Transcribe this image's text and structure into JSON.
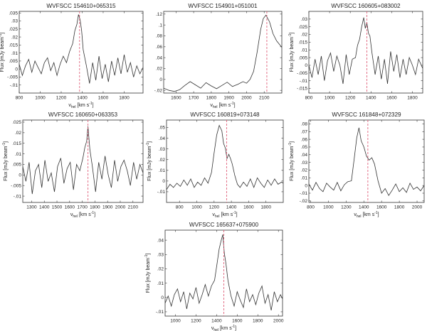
{
  "chart_data": [
    {
      "type": "line",
      "title": "WVFSCC 154610+065315",
      "ylabel": "Flux [mJy beam",
      "ylabel_sup": "-1",
      "ylabel_end": "]",
      "xlabel": "v",
      "xlabel_sub": "hel",
      "xlabel_unit": " [km s",
      "xlabel_sup": "-1",
      "xlabel_end": "]",
      "xlim": [
        800,
        1980
      ],
      "ylim": [
        -0.015,
        0.036
      ],
      "xticks": [
        800,
        1000,
        1200,
        1400,
        1600,
        1800
      ],
      "yticks": [
        -0.01,
        -0.005,
        0,
        0.005,
        0.01,
        0.015,
        0.02,
        0.025,
        0.03,
        0.035
      ],
      "marker_x": 1375,
      "x": [
        800,
        830,
        860,
        890,
        920,
        950,
        980,
        1010,
        1040,
        1070,
        1100,
        1130,
        1160,
        1190,
        1220,
        1250,
        1280,
        1310,
        1330,
        1350,
        1365,
        1380,
        1395,
        1410,
        1440,
        1470,
        1500,
        1530,
        1560,
        1590,
        1620,
        1650,
        1680,
        1710,
        1740,
        1770,
        1800,
        1830,
        1860,
        1890,
        1920,
        1950,
        1980
      ],
      "y": [
        0.003,
        -0.004,
        0.002,
        0.006,
        -0.002,
        0.005,
        0.001,
        -0.003,
        0.004,
        0.007,
        -0.001,
        0.004,
        -0.004,
        0.003,
        0.008,
        0.004,
        0.011,
        0.016,
        0.024,
        0.028,
        0.034,
        0.031,
        0.024,
        0.012,
        0.002,
        -0.009,
        0.004,
        -0.007,
        0.008,
        -0.006,
        0.003,
        -0.008,
        0.005,
        -0.004,
        0.007,
        -0.003,
        0.009,
        -0.002,
        0.004,
        -0.005,
        0.002,
        -0.003,
        0.001
      ]
    },
    {
      "type": "line",
      "title": "WVFSCC 154901+051001",
      "ylabel": "",
      "xlabel": "v",
      "xlabel_sub": "hel",
      "xlabel_unit": " [km s",
      "xlabel_sup": "-1",
      "xlabel_end": "]",
      "xlim": [
        1530,
        2200
      ],
      "ylim": [
        -0.025,
        0.125
      ],
      "xticks": [
        1600,
        1700,
        1800,
        1900,
        2000,
        2100
      ],
      "yticks": [
        -0.02,
        0,
        0.02,
        0.04,
        0.06,
        0.08,
        0.1,
        0.12
      ],
      "marker_x": 2115,
      "x": [
        1530,
        1560,
        1590,
        1620,
        1650,
        1680,
        1710,
        1740,
        1770,
        1800,
        1830,
        1860,
        1890,
        1920,
        1950,
        1980,
        2000,
        2020,
        2040,
        2060,
        2080,
        2095,
        2110,
        2130,
        2150,
        2170,
        2200
      ],
      "y": [
        -0.016,
        -0.02,
        -0.022,
        -0.019,
        -0.011,
        -0.004,
        -0.01,
        -0.016,
        -0.006,
        -0.012,
        -0.017,
        -0.011,
        -0.005,
        -0.013,
        -0.009,
        -0.004,
        -0.007,
        0.0,
        0.015,
        0.05,
        0.092,
        0.112,
        0.118,
        0.106,
        0.084,
        0.071,
        0.059
      ]
    },
    {
      "type": "line",
      "title": "WVFSCC 160605+083002",
      "ylabel": "Flux [mJy beam",
      "ylabel_sup": "-1",
      "ylabel_end": "]",
      "xlabel": "",
      "xlim": [
        800,
        1900
      ],
      "ylim": [
        -0.018,
        0.035
      ],
      "xticks": [
        800,
        1000,
        1200,
        1400,
        1600,
        1800
      ],
      "yticks": [
        -0.015,
        -0.01,
        -0.005,
        0,
        0.005,
        0.01,
        0.015,
        0.02,
        0.025,
        0.03
      ],
      "marker_x": 1360,
      "x": [
        800,
        830,
        860,
        890,
        920,
        950,
        980,
        1010,
        1040,
        1070,
        1100,
        1130,
        1160,
        1190,
        1220,
        1250,
        1270,
        1290,
        1310,
        1330,
        1345,
        1360,
        1375,
        1390,
        1410,
        1440,
        1470,
        1500,
        1530,
        1560,
        1590,
        1620,
        1650,
        1680,
        1710,
        1740,
        1770,
        1800,
        1830,
        1860,
        1900
      ],
      "y": [
        0.0,
        -0.008,
        0.004,
        -0.006,
        0.006,
        -0.01,
        0.003,
        0.008,
        -0.004,
        0.006,
        0.0,
        -0.012,
        0.007,
        -0.006,
        0.004,
        0.005,
        0.013,
        0.017,
        0.025,
        0.031,
        0.024,
        0.028,
        0.021,
        0.019,
        0.008,
        -0.006,
        0.006,
        -0.009,
        0.004,
        -0.012,
        0.009,
        -0.004,
        0.007,
        -0.008,
        0.004,
        -0.006,
        0.005,
        0.0,
        -0.006,
        0.004,
        -0.002
      ]
    },
    {
      "type": "line",
      "title": "WVFSCC 160650+063353",
      "ylabel": "Flux [mJy beam",
      "ylabel_sup": "-1",
      "ylabel_end": "]",
      "xlabel": "v",
      "xlabel_sub": "hel",
      "xlabel_unit": " [km s",
      "xlabel_sup": "-1",
      "xlabel_end": "]",
      "xlim": [
        1230,
        2180
      ],
      "ylim": [
        -0.013,
        0.026
      ],
      "xticks": [
        1300,
        1400,
        1500,
        1600,
        1700,
        1800,
        1900,
        2000,
        2100
      ],
      "yticks": [
        -0.01,
        -0.005,
        0,
        0.005,
        0.01,
        0.015,
        0.02,
        0.025
      ],
      "marker_x": 1745,
      "x": [
        1230,
        1255,
        1280,
        1305,
        1330,
        1355,
        1380,
        1405,
        1430,
        1455,
        1480,
        1505,
        1530,
        1555,
        1580,
        1605,
        1630,
        1655,
        1680,
        1705,
        1720,
        1735,
        1745,
        1760,
        1780,
        1805,
        1830,
        1855,
        1880,
        1905,
        1930,
        1955,
        1980,
        2005,
        2030,
        2055,
        2080,
        2105,
        2130,
        2155,
        2180
      ],
      "y": [
        0.004,
        -0.003,
        0.006,
        -0.009,
        0.002,
        0.005,
        -0.006,
        0.007,
        -0.003,
        0.001,
        -0.008,
        0.004,
        0.008,
        -0.004,
        0.003,
        0.006,
        -0.007,
        0.005,
        0.002,
        0.008,
        0.013,
        0.016,
        0.023,
        0.012,
        0.004,
        -0.008,
        0.006,
        -0.002,
        0.009,
        0.0,
        -0.006,
        0.007,
        -0.003,
        0.004,
        0.007,
        0.002,
        -0.005,
        0.006,
        -0.002,
        0.005,
        0.001
      ]
    },
    {
      "type": "line",
      "title": "WVFSCC 160819+073148",
      "ylabel": "Flux [mJy beam",
      "ylabel_sup": "-1",
      "ylabel_end": "]",
      "xlabel": "v",
      "xlabel_sub": "hel",
      "xlabel_unit": " [km s",
      "xlabel_sup": "-1",
      "xlabel_end": "]",
      "xlim": [
        650,
        2000
      ],
      "ylim": [
        -0.02,
        0.057
      ],
      "xticks": [
        800,
        1000,
        1200,
        1400,
        1600,
        1800
      ],
      "yticks": [
        -0.01,
        0,
        0.01,
        0.02,
        0.03,
        0.04,
        0.05
      ],
      "marker_x": 1345,
      "x": [
        650,
        690,
        730,
        770,
        810,
        850,
        890,
        930,
        970,
        1010,
        1050,
        1090,
        1130,
        1170,
        1200,
        1230,
        1260,
        1290,
        1310,
        1330,
        1350,
        1370,
        1390,
        1410,
        1440,
        1470,
        1500,
        1540,
        1580,
        1620,
        1660,
        1700,
        1740,
        1780,
        1820,
        1860,
        1900,
        1940,
        1980,
        2000
      ],
      "y": [
        -0.008,
        -0.003,
        -0.006,
        -0.002,
        -0.005,
        0.001,
        -0.004,
        0.002,
        -0.006,
        -0.001,
        -0.004,
        0.003,
        -0.002,
        0.008,
        0.026,
        0.043,
        0.052,
        0.047,
        0.035,
        0.031,
        0.021,
        0.025,
        0.021,
        0.016,
        0.005,
        -0.003,
        -0.006,
        -0.001,
        -0.005,
        0.002,
        -0.006,
        0.003,
        -0.002,
        -0.006,
        0.001,
        -0.004,
        0.002,
        -0.003,
        -0.001,
        -0.002
      ]
    },
    {
      "type": "line",
      "title": "WVFSCC 161848+072329",
      "ylabel": "Flux [mJy beam",
      "ylabel_sup": "-1",
      "ylabel_end": "]",
      "xlabel": "v",
      "xlabel_sub": "hel",
      "xlabel_unit": " [km s",
      "xlabel_sup": "-1",
      "xlabel_end": "]",
      "xlim": [
        780,
        2080
      ],
      "ylim": [
        -0.022,
        0.085
      ],
      "xticks": [
        800,
        1000,
        1200,
        1400,
        1600,
        1800,
        2000
      ],
      "yticks": [
        -0.02,
        -0.01,
        0,
        0.01,
        0.02,
        0.03,
        0.04,
        0.05,
        0.06,
        0.07,
        0.08
      ],
      "marker_x": 1445,
      "x": [
        780,
        820,
        860,
        900,
        940,
        980,
        1020,
        1060,
        1100,
        1140,
        1180,
        1220,
        1260,
        1290,
        1320,
        1345,
        1370,
        1400,
        1430,
        1460,
        1490,
        1520,
        1560,
        1600,
        1640,
        1680,
        1720,
        1760,
        1800,
        1840,
        1880,
        1920,
        1960,
        2000,
        2040,
        2080
      ],
      "y": [
        0.002,
        -0.006,
        0.004,
        -0.004,
        -0.008,
        0.003,
        -0.002,
        -0.006,
        0.004,
        -0.007,
        0.001,
        0.005,
        0.006,
        0.034,
        0.062,
        0.075,
        0.058,
        0.05,
        0.038,
        0.033,
        0.036,
        0.028,
        0.006,
        -0.01,
        -0.004,
        -0.013,
        -0.006,
        0.002,
        -0.008,
        -0.003,
        -0.009,
        0.003,
        -0.005,
        -0.002,
        -0.007,
        0.0
      ]
    },
    {
      "type": "line",
      "title": "WVFSCC 165637+075900",
      "ylabel": "Flux [mJy beam",
      "ylabel_sup": "-1",
      "ylabel_end": "]",
      "xlabel": "v",
      "xlabel_sub": "hel",
      "xlabel_unit": " [km s",
      "xlabel_sup": "-1",
      "xlabel_end": "]",
      "xlim": [
        900,
        2040
      ],
      "ylim": [
        -0.013,
        0.047
      ],
      "xticks": [
        1000,
        1200,
        1400,
        1600,
        1800,
        2000
      ],
      "yticks": [
        -0.01,
        0,
        0.01,
        0.02,
        0.03,
        0.04
      ],
      "marker_x": 1470,
      "x": [
        900,
        930,
        960,
        990,
        1020,
        1050,
        1080,
        1110,
        1140,
        1170,
        1200,
        1230,
        1260,
        1290,
        1320,
        1350,
        1380,
        1405,
        1425,
        1445,
        1460,
        1475,
        1490,
        1510,
        1540,
        1570,
        1600,
        1630,
        1660,
        1690,
        1720,
        1750,
        1780,
        1810,
        1840,
        1870,
        1900,
        1930,
        1960,
        1990,
        2020,
        2040
      ],
      "y": [
        -0.004,
        0.001,
        -0.006,
        0.002,
        0.006,
        -0.003,
        0.004,
        -0.008,
        0.003,
        -0.001,
        0.007,
        -0.004,
        0.002,
        0.009,
        0.001,
        0.008,
        0.012,
        0.024,
        0.034,
        0.04,
        0.044,
        0.031,
        0.024,
        0.012,
        0.001,
        -0.006,
        0.004,
        -0.002,
        -0.007,
        0.006,
        -0.003,
        0.002,
        -0.005,
        0.003,
        0.008,
        -0.004,
        0.002,
        -0.009,
        0.004,
        -0.003,
        0.002,
        -0.001
      ]
    }
  ]
}
